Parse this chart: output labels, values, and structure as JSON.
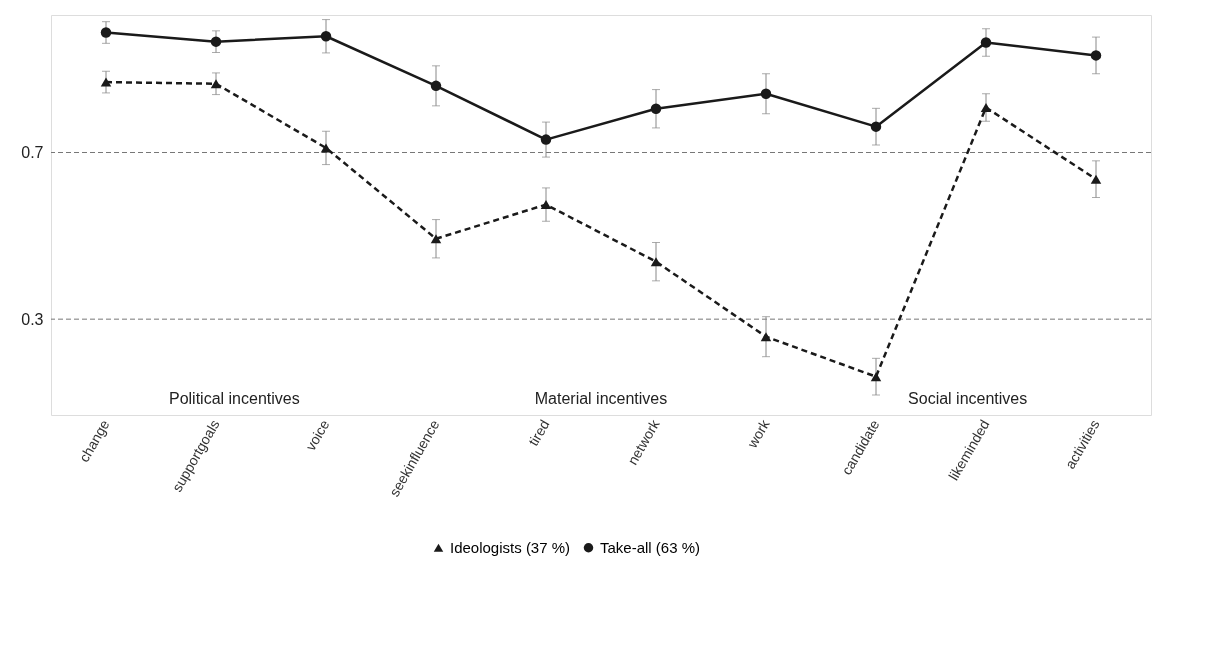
{
  "chart_data": {
    "type": "line",
    "categories": [
      "change",
      "supportgoals",
      "voice",
      "seekinfluence",
      "tired",
      "network",
      "work",
      "candidate",
      "likeminded",
      "activities"
    ],
    "series": [
      {
        "name": "Ideologists (37 %)",
        "color": "#1a1a1a",
        "marker": "triangle",
        "line_style": "dashed",
        "values": [
          0.869,
          0.865,
          0.711,
          0.493,
          0.575,
          0.438,
          0.258,
          0.162,
          0.808,
          0.636
        ],
        "errors": [
          0.026,
          0.026,
          0.04,
          0.046,
          0.04,
          0.046,
          0.048,
          0.044,
          0.033,
          0.044
        ]
      },
      {
        "name": "Take-all (63 %)",
        "color": "#1a1a1a",
        "marker": "circle",
        "line_style": "solid",
        "values": [
          0.988,
          0.966,
          0.979,
          0.86,
          0.731,
          0.805,
          0.841,
          0.762,
          0.964,
          0.933
        ],
        "errors": [
          0.026,
          0.026,
          0.04,
          0.048,
          0.042,
          0.046,
          0.048,
          0.044,
          0.033,
          0.044
        ]
      }
    ],
    "ylim": [
      0.07,
      1.03
    ],
    "yticks": [
      0.3,
      0.7
    ],
    "grid": "y",
    "legend": "bottom",
    "annotations": [
      "Political incentives",
      "Material incentives",
      "Social incentives"
    ]
  }
}
